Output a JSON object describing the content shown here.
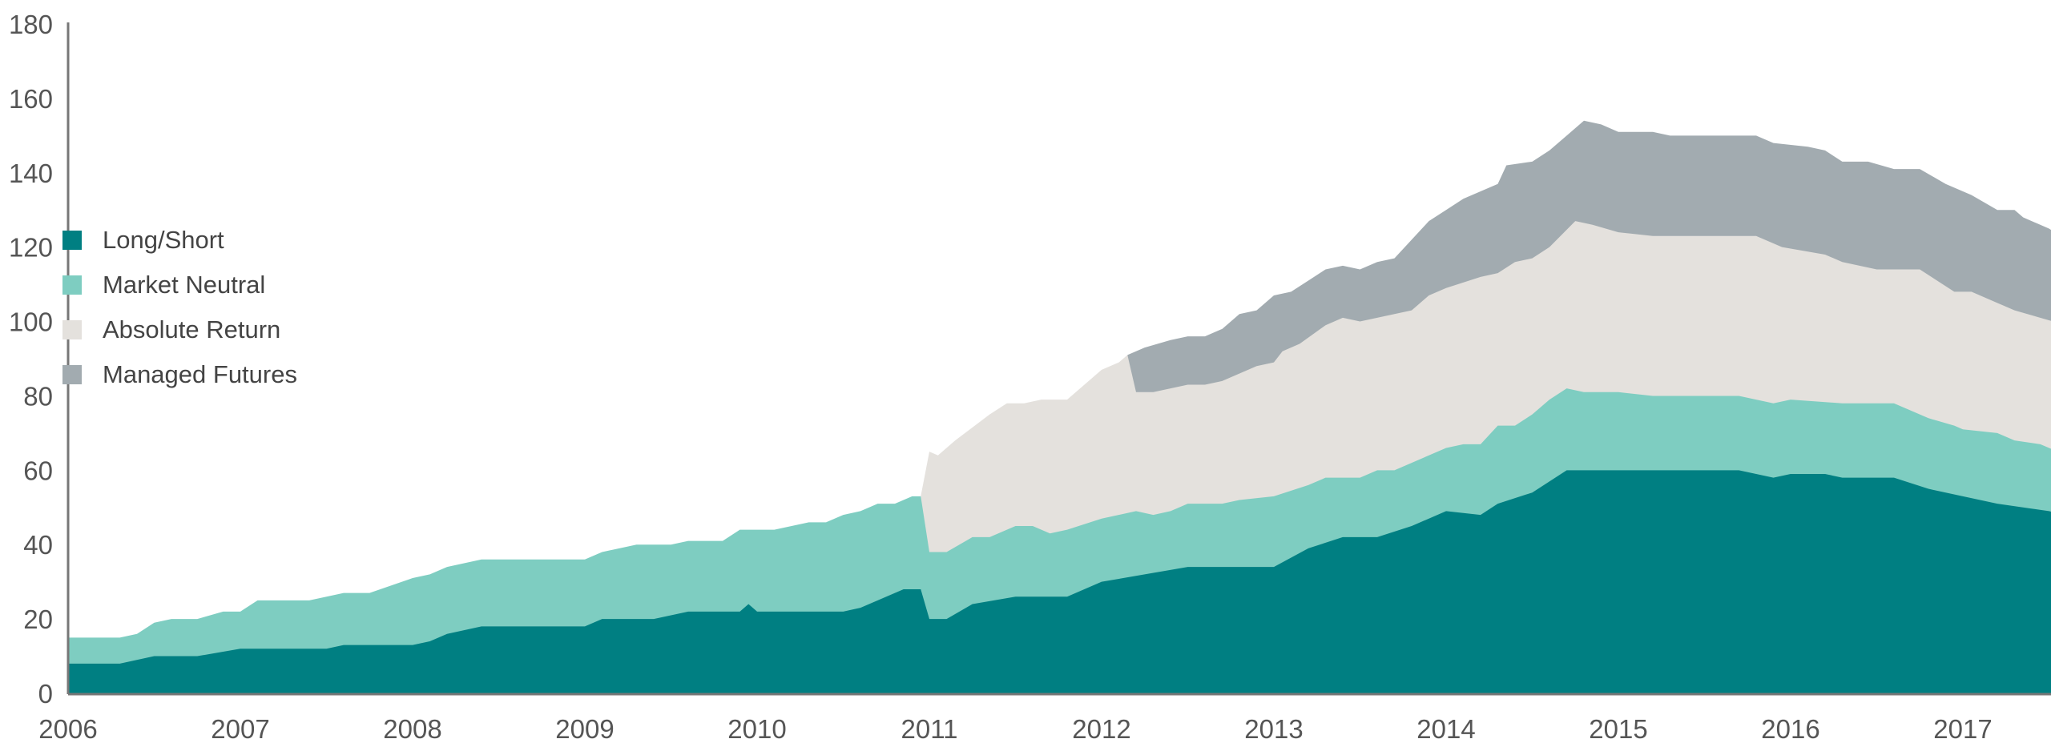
{
  "chart_data": {
    "type": "area",
    "stacked": true,
    "value_note": "points are [year, cumulative stack top]",
    "title": "",
    "xlabel": "",
    "ylabel": "",
    "xlim": [
      2006,
      2017.6
    ],
    "ylim": [
      0,
      180
    ],
    "y_ticks": [
      0,
      20,
      40,
      60,
      80,
      100,
      120,
      140,
      160,
      180
    ],
    "x_ticks": [
      2006,
      2007,
      2008,
      2009,
      2010,
      2011,
      2012,
      2013,
      2014,
      2015,
      2016,
      2017
    ],
    "grid": false,
    "legend_position": "left",
    "series": [
      {
        "name": "Long/Short",
        "color": "#007f82",
        "points": [
          [
            2006,
            8
          ],
          [
            2006.3,
            8
          ],
          [
            2006.5,
            10
          ],
          [
            2006.75,
            10
          ],
          [
            2007,
            12
          ],
          [
            2007.5,
            12
          ],
          [
            2007.6,
            13
          ],
          [
            2008,
            13
          ],
          [
            2008.1,
            14
          ],
          [
            2008.2,
            16
          ],
          [
            2008.4,
            18
          ],
          [
            2009,
            18
          ],
          [
            2009.1,
            20
          ],
          [
            2009.4,
            20
          ],
          [
            2009.6,
            22
          ],
          [
            2009.9,
            22
          ],
          [
            2009.95,
            24
          ],
          [
            2010,
            22
          ],
          [
            2010.5,
            22
          ],
          [
            2010.6,
            23
          ],
          [
            2010.7,
            25
          ],
          [
            2010.85,
            28
          ],
          [
            2010.95,
            28
          ],
          [
            2011,
            20
          ],
          [
            2011.1,
            20
          ],
          [
            2011.25,
            24
          ],
          [
            2011.5,
            26
          ],
          [
            2011.8,
            26
          ],
          [
            2012,
            30
          ],
          [
            2012.25,
            32
          ],
          [
            2012.5,
            34
          ],
          [
            2013,
            34
          ],
          [
            2013.2,
            39
          ],
          [
            2013.4,
            42
          ],
          [
            2013.6,
            42
          ],
          [
            2013.8,
            45
          ],
          [
            2014,
            49
          ],
          [
            2014.2,
            48
          ],
          [
            2014.3,
            51
          ],
          [
            2014.5,
            54
          ],
          [
            2014.7,
            60
          ],
          [
            2015,
            60
          ],
          [
            2015.7,
            60
          ],
          [
            2015.9,
            58
          ],
          [
            2016,
            59
          ],
          [
            2016.2,
            59
          ],
          [
            2016.3,
            58
          ],
          [
            2016.6,
            58
          ],
          [
            2016.8,
            55
          ],
          [
            2017,
            53
          ],
          [
            2017.2,
            51
          ],
          [
            2017.5,
            49
          ],
          [
            2017.6,
            48
          ]
        ]
      },
      {
        "name": "Market Neutral",
        "color": "#7ecdc1",
        "points": [
          [
            2006,
            15
          ],
          [
            2006.3,
            15
          ],
          [
            2006.4,
            16
          ],
          [
            2006.5,
            19
          ],
          [
            2006.6,
            20
          ],
          [
            2006.75,
            20
          ],
          [
            2006.9,
            22
          ],
          [
            2007,
            22
          ],
          [
            2007.1,
            25
          ],
          [
            2007.4,
            25
          ],
          [
            2007.6,
            27
          ],
          [
            2007.75,
            27
          ],
          [
            2008,
            31
          ],
          [
            2008.1,
            32
          ],
          [
            2008.2,
            34
          ],
          [
            2008.4,
            36
          ],
          [
            2009,
            36
          ],
          [
            2009.1,
            38
          ],
          [
            2009.3,
            40
          ],
          [
            2009.5,
            40
          ],
          [
            2009.6,
            41
          ],
          [
            2009.8,
            41
          ],
          [
            2009.9,
            44
          ],
          [
            2010.1,
            44
          ],
          [
            2010.3,
            46
          ],
          [
            2010.4,
            46
          ],
          [
            2010.5,
            48
          ],
          [
            2010.6,
            49
          ],
          [
            2010.7,
            51
          ],
          [
            2010.8,
            51
          ],
          [
            2010.9,
            53
          ],
          [
            2010.95,
            53
          ],
          [
            2011,
            38
          ],
          [
            2011.1,
            38
          ],
          [
            2011.25,
            42
          ],
          [
            2011.35,
            42
          ],
          [
            2011.5,
            45
          ],
          [
            2011.6,
            45
          ],
          [
            2011.7,
            43
          ],
          [
            2011.8,
            44
          ],
          [
            2012,
            47
          ],
          [
            2012.2,
            49
          ],
          [
            2012.3,
            48
          ],
          [
            2012.4,
            49
          ],
          [
            2012.5,
            51
          ],
          [
            2012.7,
            51
          ],
          [
            2012.8,
            52
          ],
          [
            2013,
            53
          ],
          [
            2013.2,
            56
          ],
          [
            2013.3,
            58
          ],
          [
            2013.5,
            58
          ],
          [
            2013.6,
            60
          ],
          [
            2013.7,
            60
          ],
          [
            2013.9,
            64
          ],
          [
            2014,
            66
          ],
          [
            2014.1,
            67
          ],
          [
            2014.2,
            67
          ],
          [
            2014.3,
            72
          ],
          [
            2014.4,
            72
          ],
          [
            2014.5,
            75
          ],
          [
            2014.6,
            79
          ],
          [
            2014.7,
            82
          ],
          [
            2014.8,
            81
          ],
          [
            2015,
            81
          ],
          [
            2015.2,
            80
          ],
          [
            2015.7,
            80
          ],
          [
            2015.9,
            78
          ],
          [
            2016,
            79
          ],
          [
            2016.3,
            78
          ],
          [
            2016.6,
            78
          ],
          [
            2016.8,
            74
          ],
          [
            2016.95,
            72
          ],
          [
            2017,
            71
          ],
          [
            2017.2,
            70
          ],
          [
            2017.3,
            68
          ],
          [
            2017.45,
            67
          ],
          [
            2017.6,
            64
          ]
        ]
      },
      {
        "name": "Absolute Return",
        "color": "#e4e1dd",
        "points": [
          [
            2010.95,
            53
          ],
          [
            2011,
            65
          ],
          [
            2011.05,
            64
          ],
          [
            2011.15,
            68
          ],
          [
            2011.35,
            75
          ],
          [
            2011.45,
            78
          ],
          [
            2011.55,
            78
          ],
          [
            2011.65,
            79
          ],
          [
            2011.8,
            79
          ],
          [
            2012,
            87
          ],
          [
            2012.1,
            89
          ],
          [
            2012.15,
            91
          ],
          [
            2012.2,
            81
          ],
          [
            2012.3,
            81
          ],
          [
            2012.4,
            82
          ],
          [
            2012.5,
            83
          ],
          [
            2012.6,
            83
          ],
          [
            2012.7,
            84
          ],
          [
            2012.9,
            88
          ],
          [
            2013,
            89
          ],
          [
            2013.05,
            92
          ],
          [
            2013.15,
            94
          ],
          [
            2013.3,
            99
          ],
          [
            2013.4,
            101
          ],
          [
            2013.5,
            100
          ],
          [
            2013.6,
            101
          ],
          [
            2013.8,
            103
          ],
          [
            2013.9,
            107
          ],
          [
            2014,
            109
          ],
          [
            2014.2,
            112
          ],
          [
            2014.3,
            113
          ],
          [
            2014.4,
            116
          ],
          [
            2014.5,
            117
          ],
          [
            2014.6,
            120
          ],
          [
            2014.75,
            127
          ],
          [
            2014.85,
            126
          ],
          [
            2015,
            124
          ],
          [
            2015.2,
            123
          ],
          [
            2015.8,
            123
          ],
          [
            2015.95,
            120
          ],
          [
            2016.2,
            118
          ],
          [
            2016.3,
            116
          ],
          [
            2016.5,
            114
          ],
          [
            2016.75,
            114
          ],
          [
            2016.95,
            108
          ],
          [
            2017.05,
            108
          ],
          [
            2017.2,
            105
          ],
          [
            2017.3,
            103
          ],
          [
            2017.6,
            99
          ]
        ]
      },
      {
        "name": "Managed Futures",
        "color": "#a2abb0",
        "points": [
          [
            2012.15,
            91
          ],
          [
            2012.25,
            93
          ],
          [
            2012.4,
            95
          ],
          [
            2012.5,
            96
          ],
          [
            2012.6,
            96
          ],
          [
            2012.7,
            98
          ],
          [
            2012.8,
            102
          ],
          [
            2012.9,
            103
          ],
          [
            2013,
            107
          ],
          [
            2013.1,
            108
          ],
          [
            2013.2,
            111
          ],
          [
            2013.3,
            114
          ],
          [
            2013.4,
            115
          ],
          [
            2013.5,
            114
          ],
          [
            2013.6,
            116
          ],
          [
            2013.7,
            117
          ],
          [
            2013.8,
            122
          ],
          [
            2013.9,
            127
          ],
          [
            2014,
            130
          ],
          [
            2014.1,
            133
          ],
          [
            2014.2,
            135
          ],
          [
            2014.3,
            137
          ],
          [
            2014.35,
            142
          ],
          [
            2014.5,
            143
          ],
          [
            2014.6,
            146
          ],
          [
            2014.7,
            150
          ],
          [
            2014.8,
            154
          ],
          [
            2014.9,
            153
          ],
          [
            2015,
            151
          ],
          [
            2015.2,
            151
          ],
          [
            2015.3,
            150
          ],
          [
            2015.8,
            150
          ],
          [
            2015.9,
            148
          ],
          [
            2016.1,
            147
          ],
          [
            2016.2,
            146
          ],
          [
            2016.3,
            143
          ],
          [
            2016.45,
            143
          ],
          [
            2016.6,
            141
          ],
          [
            2016.75,
            141
          ],
          [
            2016.9,
            137
          ],
          [
            2017.05,
            134
          ],
          [
            2017.2,
            130
          ],
          [
            2017.3,
            130
          ],
          [
            2017.35,
            128
          ],
          [
            2017.5,
            125
          ],
          [
            2017.6,
            122
          ]
        ]
      }
    ]
  }
}
